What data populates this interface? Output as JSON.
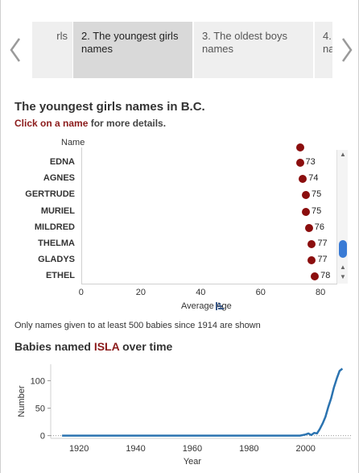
{
  "carousel": {
    "tabs": [
      {
        "label": "rls",
        "active": false
      },
      {
        "label": "2. The youngest girls\nnames",
        "active": true
      },
      {
        "label": "3. The oldest boys\nnames",
        "active": false
      },
      {
        "label": "4.\nna",
        "active": false
      }
    ],
    "prev_icon": "chevron-left-icon",
    "next_icon": "chevron-right-icon"
  },
  "section1": {
    "title": "The youngest girls names in B.C.",
    "subtitle_link": "Click on a name",
    "subtitle_rest": " for more details.",
    "column_header": "Name",
    "note": "Only names given to at least 500 babies since 1914 are shown"
  },
  "section2": {
    "title_prefix": "Babies named ",
    "title_name": "ISLA",
    "title_suffix": " over time"
  },
  "colors": {
    "dot": "#8b0e0e",
    "line": "#2b73b0",
    "link": "#8b1a1a",
    "scroll_thumb": "#3a7bd5"
  },
  "chart_data": [
    {
      "type": "scatter",
      "title": "",
      "xlabel": "Average Age",
      "ylabel": "Name",
      "xlim": [
        0,
        85
      ],
      "x_ticks": [
        "0",
        "20",
        "40",
        "60",
        "80"
      ],
      "categories": [
        "EDNA",
        "AGNES",
        "GERTRUDE",
        "MURIEL",
        "MILDRED",
        "THELMA",
        "GLADYS",
        "ETHEL"
      ],
      "values": [
        73,
        74,
        75,
        75,
        76,
        77,
        77,
        78
      ],
      "partially_visible_top_value": "73"
    },
    {
      "type": "line",
      "title": "",
      "xlabel": "Year",
      "ylabel": "Number",
      "xlim": [
        1910,
        2016
      ],
      "ylim": [
        -5,
        130
      ],
      "x_ticks": [
        "1920",
        "1940",
        "1960",
        "1980",
        "2000"
      ],
      "y_ticks": [
        "0",
        "50",
        "100"
      ],
      "x": [
        1914,
        1930,
        1950,
        1970,
        1990,
        1998,
        2000,
        2001,
        2002,
        2003,
        2004,
        2005,
        2006,
        2007,
        2008,
        2009,
        2010,
        2011,
        2012,
        2013
      ],
      "y": [
        0,
        0,
        0,
        0,
        0,
        0,
        2,
        4,
        1,
        5,
        4,
        12,
        22,
        34,
        52,
        68,
        88,
        104,
        118,
        122
      ]
    }
  ]
}
